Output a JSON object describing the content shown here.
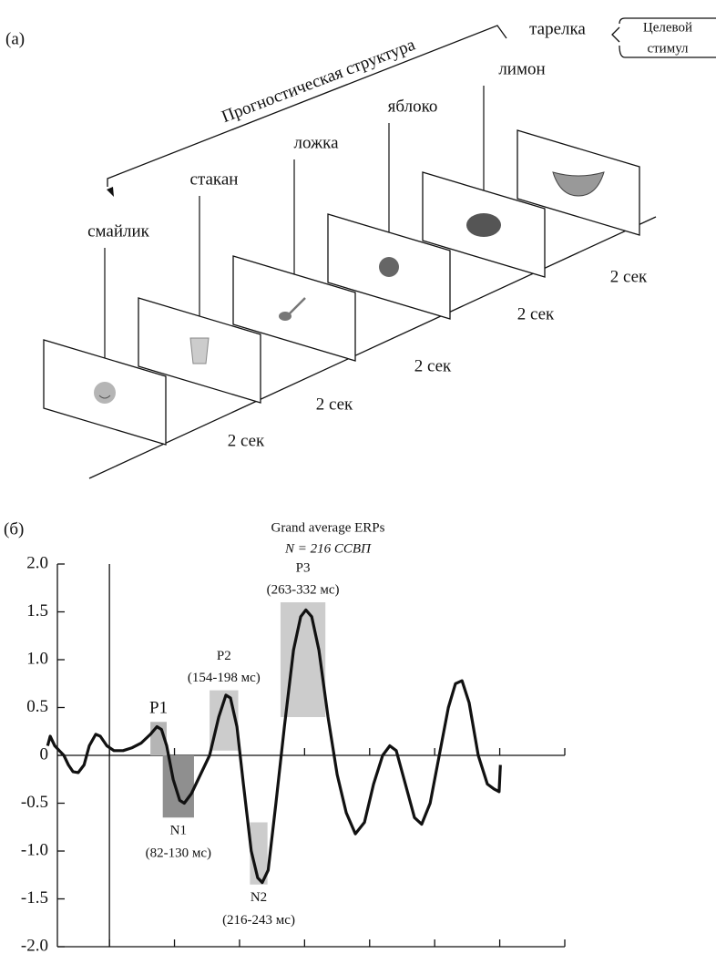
{
  "panel_a": {
    "label": "(а)",
    "structure_label": "Прогностическая структура",
    "items": [
      {
        "word": "смайлик",
        "duration": "2 сек"
      },
      {
        "word": "стакан",
        "duration": "2 сек"
      },
      {
        "word": "ложка",
        "duration": "2 сек"
      },
      {
        "word": "яблоко",
        "duration": "2 сек"
      },
      {
        "word": "лимон",
        "duration": "2 сек"
      },
      {
        "word": "тарелка"
      }
    ],
    "target_label": [
      "Целевой",
      "стимул"
    ]
  },
  "chart_data": {
    "type": "line",
    "panel_label": "(б)",
    "title": "Grand average ERPs",
    "subtitle": "N = 216 ССВП",
    "xlim": [
      -80,
      700
    ],
    "xticks": [
      0,
      100,
      200,
      300,
      400,
      500,
      600,
      700
    ],
    "ylim": [
      -2,
      2
    ],
    "yticks": [
      {
        "value": 2,
        "label": "2.0"
      },
      1.5,
      {
        "value": 1,
        "label": "1.0"
      },
      0.5,
      0,
      -0.5,
      {
        "value": -1,
        "label": "-1.0"
      },
      -1.5,
      {
        "value": -2,
        "label": "-2.0"
      }
    ],
    "x": [
      -95,
      -91,
      -84,
      -77,
      -70,
      -63,
      -56,
      -48,
      -39,
      -31,
      -21,
      -14,
      -4,
      7,
      21,
      35,
      49,
      63,
      73,
      80,
      88,
      98,
      108,
      115,
      126,
      140,
      154,
      168,
      179,
      186,
      196,
      206,
      218,
      228,
      235,
      244,
      256,
      269,
      283,
      294,
      302,
      311,
      322,
      336,
      350,
      364,
      378,
      392,
      406,
      420,
      431,
      441,
      455,
      469,
      480,
      493,
      507,
      521,
      532,
      542,
      553,
      567,
      581,
      591,
      599,
      601
    ],
    "series": [
      {
        "color": "#111111",
        "values": [
          0.1,
          0.2,
          0.1,
          0.05,
          0,
          -0.1,
          -0.17,
          -0.18,
          -0.1,
          0.1,
          0.22,
          0.2,
          0.1,
          0.05,
          0.05,
          0.08,
          0.13,
          0.22,
          0.3,
          0.27,
          0.1,
          -0.25,
          -0.47,
          -0.5,
          -0.4,
          -0.2,
          0,
          0.4,
          0.63,
          0.6,
          0.3,
          -0.3,
          -1.0,
          -1.28,
          -1.33,
          -1.2,
          -0.5,
          0.3,
          1.1,
          1.45,
          1.52,
          1.45,
          1.1,
          0.4,
          -0.2,
          -0.6,
          -0.82,
          -0.7,
          -0.3,
          0,
          0.1,
          0.05,
          -0.3,
          -0.65,
          -0.72,
          -0.5,
          0,
          0.5,
          0.75,
          0.78,
          0.55,
          0,
          -0.3,
          -0.35,
          -0.38,
          -0.1
        ]
      }
    ],
    "components": [
      {
        "name": "P1",
        "start": 63,
        "end": 88,
        "low": 0,
        "high": 0.35,
        "color": "#b5b5b5"
      },
      {
        "name": "N1",
        "window": "(82-130 мс)",
        "start": 82,
        "end": 130,
        "low": -0.65,
        "high": 0,
        "color": "#8f8f8f"
      },
      {
        "name": "P2",
        "window": "(154-198 мс)",
        "start": 154,
        "end": 198,
        "low": 0.05,
        "high": 0.68,
        "color": "#cccccc"
      },
      {
        "name": "N2",
        "window": "(216-243 мс)",
        "start": 216,
        "end": 243,
        "low": -1.35,
        "high": -0.7,
        "color": "#cccccc"
      },
      {
        "name": "P3",
        "window": "(263-332 мс)",
        "start": 263,
        "end": 332,
        "low": 0.4,
        "high": 1.6,
        "color": "#cccccc"
      }
    ]
  }
}
